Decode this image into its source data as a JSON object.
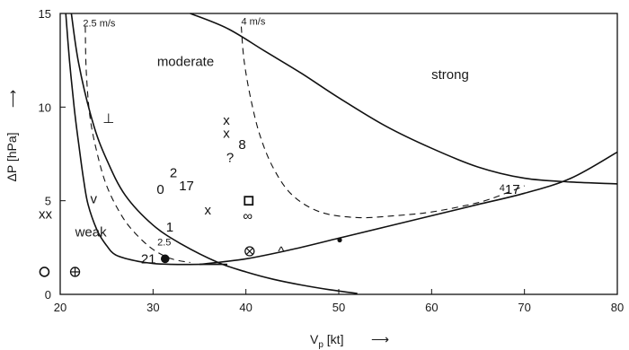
{
  "chart_data": {
    "type": "scatter",
    "title": "",
    "xlabel": "V",
    "xlabel_sub": "p",
    "xlabel_unit": " [kt]",
    "xlabel_arrow": "⟶",
    "ylabel": "ΔP [hPa]",
    "ylabel_arrow": "⟶",
    "xlim": [
      20,
      80
    ],
    "ylim": [
      0,
      15
    ],
    "xticks": [
      "20",
      "30",
      "40",
      "50",
      "60",
      "70",
      "80"
    ],
    "yticks": [
      "0",
      "5",
      "10",
      "15"
    ],
    "grid": false,
    "region_labels": [
      {
        "text": "moderate",
        "x": 33.5,
        "y": 12.2
      },
      {
        "text": "strong",
        "x": 62,
        "y": 11.5
      },
      {
        "text": "weak",
        "x": 23.3,
        "y": 3.1
      }
    ],
    "curve_labels": [
      {
        "text": "2.5 m/s",
        "x": 24.2,
        "y": 14.3
      },
      {
        "text": "4 m/s",
        "x": 40.8,
        "y": 14.4
      },
      {
        "text": "2.5",
        "x": 31.2,
        "y": 2.6
      },
      {
        "text": "4",
        "x": 67.6,
        "y": 5.5
      }
    ],
    "boundaries": [
      {
        "name": "",
        "style": "solid",
        "x": [
          21.2,
          22,
          23.5,
          25,
          27,
          30,
          33,
          37,
          40,
          43,
          46,
          49,
          52
        ],
        "y": [
          15,
          12.3,
          9.2,
          7.2,
          5.3,
          3.7,
          2.7,
          1.7,
          1.2,
          0.8,
          0.5,
          0.25,
          0.05
        ]
      },
      {
        "name": "",
        "style": "solid",
        "x": [
          20.6,
          21,
          21.5,
          22,
          22.5,
          23,
          24,
          25,
          26,
          28,
          30,
          32,
          35,
          38
        ],
        "y": [
          15,
          12.5,
          10,
          8,
          6.2,
          4.8,
          3.4,
          2.6,
          2.1,
          1.8,
          1.65,
          1.6,
          1.6,
          1.6
        ]
      },
      {
        "name": "",
        "style": "solid",
        "x": [
          35,
          40,
          45,
          50,
          55,
          60,
          65,
          70,
          75,
          80
        ],
        "y": [
          1.6,
          1.9,
          2.4,
          3.0,
          3.6,
          4.2,
          4.8,
          5.4,
          6.2,
          7.6
        ]
      },
      {
        "name": "",
        "style": "solid",
        "x": [
          34,
          38,
          42,
          46,
          50,
          55,
          60,
          65,
          70,
          75,
          80
        ],
        "y": [
          15,
          14.2,
          13.0,
          11.8,
          10.5,
          9.0,
          7.8,
          6.8,
          6.2,
          6.0,
          5.9
        ]
      },
      {
        "name": "2.5 m/s",
        "style": "dashed",
        "x": [
          22.7,
          22.8,
          23.2,
          24,
          25,
          26.5,
          28,
          30,
          32,
          34
        ],
        "y": [
          14.3,
          12,
          9.5,
          7.5,
          5.8,
          4.3,
          3.3,
          2.4,
          1.9,
          1.7
        ]
      },
      {
        "name": "4 m/s",
        "style": "dashed",
        "x": [
          39.5,
          39.8,
          40.5,
          41.5,
          43,
          45,
          48,
          52,
          56,
          60,
          65,
          68,
          70
        ],
        "y": [
          14.3,
          12.5,
          10.5,
          8.5,
          6.7,
          5.3,
          4.4,
          4.1,
          4.2,
          4.4,
          4.9,
          5.4,
          5.8
        ]
      }
    ],
    "points": [
      {
        "label": "⊥",
        "x": 25.2,
        "y": 9.4,
        "kind": "text"
      },
      {
        "label": "x",
        "x": 37.9,
        "y": 9.3,
        "kind": "text"
      },
      {
        "label": "x",
        "x": 37.9,
        "y": 8.6,
        "kind": "text"
      },
      {
        "label": "8",
        "x": 39.6,
        "y": 8.0,
        "kind": "text"
      },
      {
        "label": "?",
        "x": 38.3,
        "y": 7.3,
        "kind": "text"
      },
      {
        "label": "2",
        "x": 32.2,
        "y": 6.5,
        "kind": "text"
      },
      {
        "label": "17",
        "x": 33.6,
        "y": 5.8,
        "kind": "text"
      },
      {
        "label": "0",
        "x": 30.8,
        "y": 5.6,
        "kind": "text"
      },
      {
        "label": "x",
        "x": 35.9,
        "y": 4.5,
        "kind": "text"
      },
      {
        "label": "v",
        "x": 23.6,
        "y": 5.1,
        "kind": "text"
      },
      {
        "label": "xx",
        "x": 18.4,
        "y": 4.3,
        "kind": "text"
      },
      {
        "label": "1",
        "x": 31.8,
        "y": 3.6,
        "kind": "text"
      },
      {
        "label": "21",
        "x": 29.5,
        "y": 1.9,
        "kind": "text"
      },
      {
        "label": "∞",
        "x": 40.2,
        "y": 4.2,
        "kind": "text"
      },
      {
        "label": "^",
        "x": 43.8,
        "y": 2.3,
        "kind": "text"
      },
      {
        "label": "17",
        "x": 68.7,
        "y": 5.6,
        "kind": "text"
      },
      {
        "label": "",
        "x": 40.3,
        "y": 5.0,
        "kind": "open-square"
      },
      {
        "label": "",
        "x": 31.3,
        "y": 1.9,
        "kind": "filled-circle"
      },
      {
        "label": "",
        "x": 40.4,
        "y": 2.3,
        "kind": "circle-times"
      },
      {
        "label": "",
        "x": 50.1,
        "y": 2.9,
        "kind": "small-dot"
      },
      {
        "label": "",
        "x": 21.6,
        "y": 1.2,
        "kind": "circle-plus"
      },
      {
        "label": "",
        "x": 18.3,
        "y": 1.2,
        "kind": "open-circle"
      }
    ]
  }
}
